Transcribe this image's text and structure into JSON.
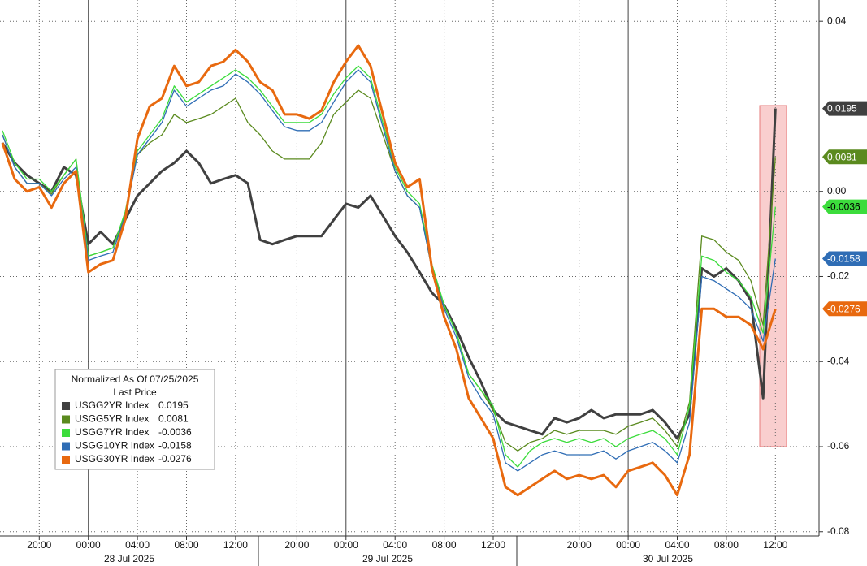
{
  "chart_data": {
    "type": "line",
    "categories": [
      null,
      null,
      null,
      "20:00",
      null,
      null,
      null,
      "00:00",
      null,
      null,
      null,
      "04:00",
      null,
      null,
      null,
      "08:00",
      null,
      null,
      null,
      "12:00",
      null,
      null,
      null,
      null,
      "20:00",
      null,
      null,
      null,
      "00:00",
      null,
      null,
      null,
      "04:00",
      null,
      null,
      null,
      "08:00",
      null,
      null,
      null,
      "12:00",
      null,
      null,
      null,
      null,
      null,
      null,
      "20:00",
      null,
      null,
      null,
      "00:00",
      null,
      null,
      null,
      "04:00",
      null,
      null,
      null,
      "08:00",
      null,
      null,
      null,
      "12:00"
    ],
    "x_groups": [
      "28 Jul 2025",
      "29 Jul 2025",
      "30 Jul 2025"
    ],
    "ylim": [
      -0.081,
      0.045
    ],
    "yticks": [
      0.04,
      {
        "value": 0,
        "label": "0.00"
      },
      -0.02,
      -0.04,
      -0.06,
      -0.08
    ],
    "grid": true,
    "legend": {
      "title": "Normalized As Of 07/25/2025",
      "subtitle": "Last Price"
    },
    "series": [
      {
        "name": "USGG2YR Index",
        "color": "#404040",
        "last": 0.0195,
        "values": [
          0.0114,
          0.0067,
          0.0038,
          0.0019,
          0,
          0.0057,
          0.0038,
          -0.0124,
          -0.0095,
          -0.0124,
          -0.0067,
          -0.001,
          0.0019,
          0.0048,
          0.0067,
          0.0095,
          0.0067,
          0.0019,
          0.0029,
          0.0038,
          0.0019,
          -0.0114,
          -0.0124,
          -0.0114,
          -0.0105,
          -0.0105,
          -0.0105,
          -0.0067,
          -0.0029,
          -0.0038,
          -0.001,
          -0.0057,
          -0.0105,
          -0.0143,
          -0.019,
          -0.0238,
          -0.0267,
          -0.0324,
          -0.039,
          -0.0448,
          -0.0514,
          -0.0543,
          -0.0552,
          -0.0562,
          -0.0571,
          -0.0533,
          -0.0543,
          -0.0533,
          -0.0514,
          -0.0533,
          -0.0524,
          -0.0524,
          -0.0524,
          -0.0514,
          -0.0543,
          -0.0581,
          -0.0524,
          -0.0181,
          -0.02,
          -0.0181,
          -0.021,
          -0.0257,
          -0.0486,
          0.0195
        ]
      },
      {
        "name": "USGG5YR Index",
        "color": "#5a8a1e",
        "last": 0.0081,
        "values": [
          0.0133,
          0.0057,
          0.0019,
          0.0019,
          -0.0006,
          0.0038,
          0.0076,
          -0.0152,
          -0.0143,
          -0.0133,
          -0.0051,
          0.0086,
          0.0114,
          0.0133,
          0.0181,
          0.0162,
          0.0171,
          0.0181,
          0.02,
          0.0219,
          0.0162,
          0.0133,
          0.0095,
          0.0076,
          0.0076,
          0.0076,
          0.0114,
          0.0181,
          0.021,
          0.0238,
          0.0219,
          0.0133,
          0.0048,
          -0.001,
          -0.0038,
          -0.0181,
          -0.0267,
          -0.0333,
          -0.0429,
          -0.0467,
          -0.0514,
          -0.059,
          -0.061,
          -0.059,
          -0.0581,
          -0.0562,
          -0.0571,
          -0.0562,
          -0.0562,
          -0.0562,
          -0.0571,
          -0.0552,
          -0.0543,
          -0.0533,
          -0.0562,
          -0.06,
          -0.0495,
          -0.0105,
          -0.0114,
          -0.0143,
          -0.0162,
          -0.021,
          -0.0314,
          0.0081
        ]
      },
      {
        "name": "USGG7YR Index",
        "color": "#3cdc3c",
        "last": -0.0036,
        "values": [
          0.0143,
          0.0067,
          0.0029,
          0.0029,
          0,
          0.0038,
          0.0076,
          -0.0152,
          -0.0143,
          -0.0133,
          -0.0048,
          0.0095,
          0.0133,
          0.0171,
          0.0248,
          0.021,
          0.0229,
          0.0248,
          0.0267,
          0.0286,
          0.0267,
          0.0238,
          0.02,
          0.0162,
          0.0162,
          0.0162,
          0.0181,
          0.0229,
          0.0267,
          0.0295,
          0.0267,
          0.0162,
          0.0057,
          0,
          -0.0029,
          -0.0171,
          -0.0267,
          -0.0333,
          -0.0429,
          -0.0467,
          -0.0505,
          -0.0619,
          -0.0648,
          -0.061,
          -0.059,
          -0.0581,
          -0.059,
          -0.0581,
          -0.059,
          -0.0581,
          -0.06,
          -0.0581,
          -0.0571,
          -0.0562,
          -0.0581,
          -0.0619,
          -0.0505,
          -0.0152,
          -0.0162,
          -0.019,
          -0.021,
          -0.0248,
          -0.0333,
          -0.0036
        ]
      },
      {
        "name": "USGG10YR Index",
        "color": "#2f6db5",
        "last": -0.0158,
        "values": [
          0.0133,
          0.0057,
          0.0019,
          0.0019,
          -0.001,
          0.0029,
          0.0057,
          -0.0162,
          -0.0152,
          -0.0143,
          -0.0057,
          0.0086,
          0.0124,
          0.0162,
          0.0238,
          0.02,
          0.0219,
          0.0238,
          0.0248,
          0.0276,
          0.0257,
          0.0229,
          0.019,
          0.0152,
          0.0143,
          0.0143,
          0.0162,
          0.021,
          0.0257,
          0.0286,
          0.0257,
          0.0152,
          0.0048,
          -0.001,
          -0.0038,
          -0.0181,
          -0.0276,
          -0.0343,
          -0.0438,
          -0.0486,
          -0.0524,
          -0.0638,
          -0.0657,
          -0.0638,
          -0.0619,
          -0.061,
          -0.0619,
          -0.0619,
          -0.0619,
          -0.061,
          -0.0629,
          -0.061,
          -0.06,
          -0.059,
          -0.061,
          -0.0638,
          -0.0543,
          -0.02,
          -0.021,
          -0.0229,
          -0.0248,
          -0.0276,
          -0.0352,
          -0.0158
        ]
      },
      {
        "name": "USGG30YR Index",
        "color": "#e8690f",
        "last": -0.0276,
        "values": [
          0.0114,
          0.0029,
          0,
          0.001,
          -0.0038,
          0.0019,
          0.0048,
          -0.019,
          -0.0171,
          -0.0162,
          -0.0067,
          0.0124,
          0.02,
          0.0219,
          0.0295,
          0.0248,
          0.0257,
          0.0295,
          0.0305,
          0.0333,
          0.0305,
          0.0257,
          0.0238,
          0.0181,
          0.0181,
          0.0171,
          0.019,
          0.0257,
          0.0305,
          0.0343,
          0.0295,
          0.0181,
          0.0067,
          0.001,
          0.0029,
          -0.0181,
          -0.0295,
          -0.0371,
          -0.0486,
          -0.0533,
          -0.0581,
          -0.0695,
          -0.0714,
          -0.0695,
          -0.0676,
          -0.0657,
          -0.0676,
          -0.0667,
          -0.0676,
          -0.0667,
          -0.0695,
          -0.0657,
          -0.0648,
          -0.0638,
          -0.0667,
          -0.0714,
          -0.0619,
          -0.0276,
          -0.0276,
          -0.0295,
          -0.0295,
          -0.0314,
          -0.0371,
          -0.0276
        ]
      }
    ]
  }
}
